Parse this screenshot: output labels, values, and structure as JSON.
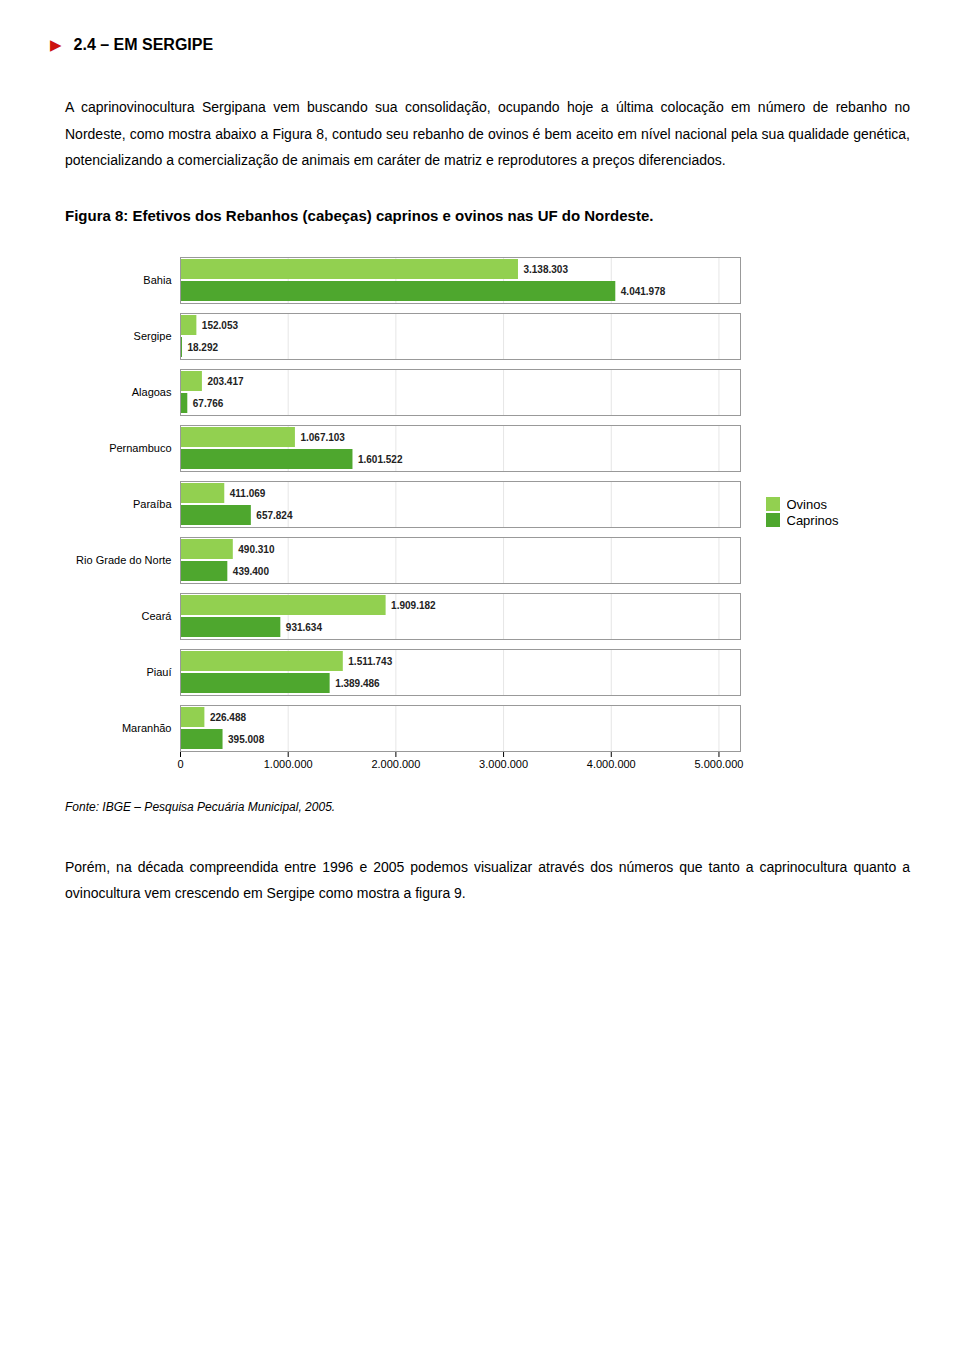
{
  "chart_data": {
    "type": "bar",
    "orientation": "horizontal",
    "title": "Figura 8: Efetivos dos Rebanhos (cabeças) caprinos e ovinos nas UF do Nordeste.",
    "annotations": [
      "▶",
      "2.4 – EM SERGIPE",
      "A caprinovinocultura Sergipana vem buscando sua consolidação, ocupando hoje a última colocação em número de rebanho no Nordeste, como mostra abaixo a Figura 8, contudo seu rebanho de ovinos é bem aceito em nível nacional pela sua qualidade genética, potencializando a comercialização de animais em caráter de matriz e reprodutores a preços diferenciados.",
      "Fonte: IBGE – Pesquisa Pecuária Municipal, 2005.",
      "Porém, na década compreendida entre 1996 e 2005 podemos visualizar através dos números que tanto a caprinocultura quanto a ovinocultura vem crescendo em Sergipe como mostra a figura 9."
    ],
    "categories": [
      "Bahia",
      "Sergipe",
      "Alagoas",
      "Pernambuco",
      "Paraíba",
      "Rio Grade do Norte",
      "Ceará",
      "Piauí",
      "Maranhão"
    ],
    "series": [
      {
        "name": "Ovinos",
        "color": "#92d050",
        "values": [
          3138303,
          152053,
          203417,
          1067103,
          411069,
          490310,
          1909182,
          1511743,
          226488
        ],
        "value_labels": [
          "3.138.303",
          "152.053",
          "203.417",
          "1.067.103",
          "411.069",
          "490.310",
          "1.909.182",
          "1.511.743",
          "226.488"
        ]
      },
      {
        "name": "Caprinos",
        "color": "#4ea72e",
        "values": [
          4041978,
          18292,
          67766,
          1601522,
          657824,
          439400,
          931634,
          1389486,
          395008
        ],
        "value_labels": [
          "4.041.978",
          "18.292",
          "67.766",
          "1.601.522",
          "657.824",
          "439.400",
          "931.634",
          "1.389.486",
          "395.008"
        ]
      }
    ],
    "xlim": [
      0,
      5200000
    ],
    "xticks": [
      0,
      {
        "value": 1000000,
        "label": "1.000.000"
      },
      {
        "value": 2000000,
        "label": "2.000.000"
      },
      {
        "value": 3000000,
        "label": "3.000.000"
      },
      {
        "value": 4000000,
        "label": "4.000.000"
      },
      {
        "value": 5000000,
        "label": "5.000.000"
      }
    ],
    "grid": true,
    "legend": "right",
    "data_labels": true
  }
}
